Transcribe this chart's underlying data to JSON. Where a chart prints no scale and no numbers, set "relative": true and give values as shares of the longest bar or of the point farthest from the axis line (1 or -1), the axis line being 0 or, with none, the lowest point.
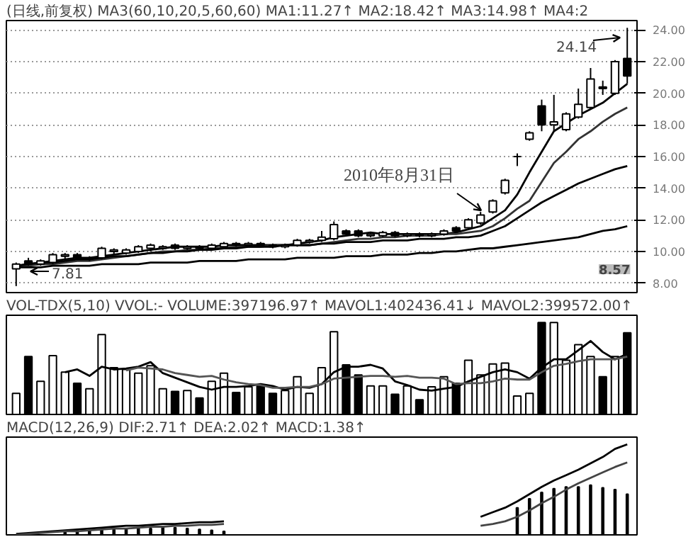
{
  "chart_data": [
    {
      "type": "candlestick",
      "title": "(日线,前复权) MA3(60,10,20,5,60,60) MA1:11.27↑ MA2:18.42↑ MA3:14.98↑ MA4:2",
      "categories": [
        null,
        null,
        null,
        null,
        null,
        null,
        null,
        null,
        null,
        null,
        null,
        null,
        null,
        null,
        null,
        null,
        null,
        null,
        null,
        null,
        null,
        null,
        null,
        null,
        null,
        null,
        null,
        null,
        null,
        null,
        null,
        null,
        null,
        null,
        null,
        null,
        null,
        null,
        null,
        null,
        null,
        null,
        null,
        null,
        null,
        null,
        null,
        null,
        null,
        null,
        null
      ],
      "ohlc": [
        [
          8.9,
          9.3,
          7.81,
          9.2
        ],
        [
          9.4,
          9.6,
          9.1,
          9.2
        ],
        [
          9.2,
          9.5,
          9.1,
          9.4
        ],
        [
          9.3,
          9.9,
          9.2,
          9.8
        ],
        [
          9.7,
          9.9,
          9.5,
          9.8
        ],
        [
          9.8,
          9.9,
          9.5,
          9.6
        ],
        [
          9.5,
          9.7,
          9.4,
          9.6
        ],
        [
          9.6,
          10.3,
          9.5,
          10.2
        ],
        [
          10.0,
          10.2,
          9.8,
          10.1
        ],
        [
          9.9,
          10.2,
          9.8,
          10.1
        ],
        [
          10.0,
          10.4,
          9.9,
          10.3
        ],
        [
          10.2,
          10.5,
          10.0,
          10.4
        ],
        [
          10.2,
          10.4,
          10.1,
          10.3
        ],
        [
          10.4,
          10.5,
          10.1,
          10.2
        ],
        [
          10.2,
          10.4,
          10.1,
          10.3
        ],
        [
          10.3,
          10.4,
          10.1,
          10.2
        ],
        [
          10.2,
          10.5,
          10.1,
          10.4
        ],
        [
          10.3,
          10.6,
          10.2,
          10.5
        ],
        [
          10.5,
          10.6,
          10.3,
          10.4
        ],
        [
          10.4,
          10.6,
          10.3,
          10.5
        ],
        [
          10.5,
          10.6,
          10.3,
          10.4
        ],
        [
          10.4,
          10.5,
          10.2,
          10.3
        ],
        [
          10.3,
          10.5,
          10.2,
          10.4
        ],
        [
          10.4,
          10.8,
          10.3,
          10.7
        ],
        [
          10.6,
          10.8,
          10.5,
          10.7
        ],
        [
          10.7,
          11.3,
          10.6,
          10.9
        ],
        [
          10.8,
          11.9,
          10.7,
          11.7
        ],
        [
          11.3,
          11.4,
          11.0,
          11.1
        ],
        [
          11.3,
          11.4,
          10.9,
          11.0
        ],
        [
          11.0,
          11.2,
          10.9,
          11.1
        ],
        [
          11.0,
          11.3,
          10.9,
          11.2
        ],
        [
          11.2,
          11.3,
          10.9,
          11.0
        ],
        [
          11.0,
          11.2,
          10.9,
          11.1
        ],
        [
          11.1,
          11.2,
          10.9,
          11.0
        ],
        [
          11.0,
          11.2,
          10.9,
          11.1
        ],
        [
          11.1,
          11.4,
          11.0,
          11.3
        ],
        [
          11.5,
          11.6,
          11.2,
          11.3
        ],
        [
          11.5,
          12.1,
          11.4,
          12.0
        ],
        [
          11.8,
          12.5,
          11.7,
          12.3
        ],
        [
          12.5,
          13.3,
          12.4,
          13.2
        ],
        [
          13.7,
          14.6,
          13.6,
          14.5
        ],
        [
          16.0,
          16.2,
          15.4,
          16.0
        ],
        [
          17.1,
          17.6,
          17.0,
          17.5
        ],
        [
          19.2,
          19.6,
          17.6,
          18.0
        ],
        [
          18.0,
          19.9,
          17.6,
          18.2
        ],
        [
          17.7,
          18.8,
          17.6,
          18.7
        ],
        [
          18.5,
          20.3,
          18.4,
          19.3
        ],
        [
          19.1,
          21.6,
          19.0,
          20.9
        ],
        [
          20.4,
          20.8,
          19.9,
          20.3
        ],
        [
          20.0,
          22.1,
          19.9,
          22.0
        ],
        [
          22.2,
          24.14,
          20.6,
          21.1
        ]
      ],
      "series": [
        {
          "type": "line",
          "color": "#000000",
          "values": [
            9.1,
            9.2,
            9.3,
            9.4,
            9.5,
            9.6,
            9.6,
            9.7,
            9.8,
            9.9,
            10.0,
            10.1,
            10.2,
            10.3,
            10.3,
            10.3,
            10.3,
            10.4,
            10.4,
            10.4,
            10.4,
            10.4,
            10.4,
            10.5,
            10.6,
            10.7,
            10.9,
            11.0,
            11.1,
            11.2,
            11.1,
            11.1,
            11.1,
            11.1,
            11.1,
            11.1,
            11.2,
            11.4,
            11.6,
            12.1,
            12.6,
            13.6,
            15.0,
            16.3,
            17.6,
            18.1,
            18.6,
            19.0,
            19.4,
            20.0,
            20.6
          ]
        },
        {
          "type": "line",
          "color": "#333333",
          "values": [
            9.0,
            9.1,
            9.2,
            9.2,
            9.3,
            9.4,
            9.4,
            9.5,
            9.6,
            9.7,
            9.8,
            9.9,
            10.0,
            10.0,
            10.1,
            10.1,
            10.2,
            10.2,
            10.3,
            10.3,
            10.3,
            10.4,
            10.4,
            10.4,
            10.4,
            10.5,
            10.6,
            10.7,
            10.8,
            10.8,
            10.9,
            10.9,
            11.0,
            11.0,
            11.0,
            11.1,
            11.1,
            11.2,
            11.3,
            11.6,
            12.1,
            12.7,
            13.2,
            14.4,
            15.6,
            16.3,
            17.1,
            17.6,
            18.2,
            18.7,
            19.1
          ]
        },
        {
          "type": "line",
          "color": "#000000",
          "values": [
            9.1,
            9.2,
            9.3,
            9.3,
            9.4,
            9.5,
            9.5,
            9.6,
            9.7,
            9.7,
            9.8,
            9.9,
            9.9,
            10.0,
            10.0,
            10.1,
            10.1,
            10.2,
            10.2,
            10.3,
            10.3,
            10.3,
            10.4,
            10.4,
            10.4,
            10.5,
            10.5,
            10.6,
            10.6,
            10.6,
            10.7,
            10.7,
            10.7,
            10.8,
            10.8,
            10.8,
            10.9,
            10.9,
            11.0,
            11.3,
            11.6,
            12.1,
            12.6,
            13.1,
            13.5,
            13.9,
            14.3,
            14.6,
            14.9,
            15.2,
            15.4
          ]
        },
        {
          "type": "line",
          "color": "#000000",
          "values": [
            9.0,
            9.0,
            9.0,
            9.1,
            9.1,
            9.1,
            9.1,
            9.2,
            9.2,
            9.2,
            9.2,
            9.3,
            9.3,
            9.3,
            9.3,
            9.4,
            9.4,
            9.4,
            9.4,
            9.5,
            9.5,
            9.5,
            9.5,
            9.6,
            9.6,
            9.6,
            9.6,
            9.7,
            9.7,
            9.7,
            9.8,
            9.8,
            9.8,
            9.9,
            9.9,
            10.0,
            10.0,
            10.1,
            10.2,
            10.2,
            10.3,
            10.4,
            10.5,
            10.6,
            10.7,
            10.8,
            10.9,
            11.1,
            11.3,
            11.4,
            11.6
          ]
        }
      ],
      "ylim": [
        7.4,
        24.6
      ],
      "yticks": [
        {
          "value": 8,
          "label": "8.00"
        },
        {
          "value": 10,
          "label": "10.00"
        },
        {
          "value": 12,
          "label": "12.00"
        },
        {
          "value": 14,
          "label": "14.00"
        },
        {
          "value": 16,
          "label": "16.00"
        },
        {
          "value": 18,
          "label": "18.00"
        },
        {
          "value": 20,
          "label": "20.00"
        },
        {
          "value": 22,
          "label": "22.00"
        },
        {
          "value": 24,
          "label": "24.00"
        }
      ],
      "grid": "y",
      "tick_labels": "y",
      "annotations": [
        "2010年8月31日",
        "24.14",
        "7.81",
        "8.57"
      ]
    },
    {
      "type": "bar",
      "title": "VOL-TDX(5,10) VVOL:- VOLUME:397196.97↑ MAVOL1:402436.41↓ MAVOL2:399572.00↑",
      "relative": true,
      "tick_labels": false,
      "categories": [
        null,
        null,
        null,
        null,
        null,
        null,
        null,
        null,
        null,
        null,
        null,
        null,
        null,
        null,
        null,
        null,
        null,
        null,
        null,
        null,
        null,
        null,
        null,
        null,
        null,
        null,
        null,
        null,
        null,
        null,
        null,
        null,
        null,
        null,
        null,
        null,
        null,
        null,
        null,
        null,
        null,
        null,
        null,
        null,
        null,
        null,
        null,
        null,
        null,
        null,
        null
      ],
      "series": [
        {
          "type": "bar",
          "values": [
            0.23,
            0.63,
            0.36,
            0.64,
            0.46,
            0.34,
            0.28,
            0.87,
            0.51,
            0.49,
            0.45,
            0.53,
            0.28,
            0.25,
            0.26,
            0.18,
            0.36,
            0.45,
            0.24,
            0.3,
            0.31,
            0.23,
            0.26,
            0.41,
            0.23,
            0.51,
            0.9,
            0.54,
            0.43,
            0.31,
            0.31,
            0.22,
            0.31,
            0.16,
            0.3,
            0.41,
            0.34,
            0.59,
            0.43,
            0.55,
            0.56,
            0.2,
            0.23,
            1,
            1,
            0.59,
            0.76,
            0.63,
            0.41,
            0.63,
            0.89
          ],
          "colors": [
            "#ffffff",
            "#000000",
            "#ffffff",
            "#ffffff",
            "#ffffff",
            "#000000",
            "#ffffff",
            "#ffffff",
            "#ffffff",
            "#ffffff",
            "#ffffff",
            "#ffffff",
            "#ffffff",
            "#000000",
            "#ffffff",
            "#000000",
            "#ffffff",
            "#ffffff",
            "#000000",
            "#ffffff",
            "#000000",
            "#000000",
            "#ffffff",
            "#ffffff",
            "#ffffff",
            "#ffffff",
            "#ffffff",
            "#000000",
            "#000000",
            "#ffffff",
            "#ffffff",
            "#000000",
            "#ffffff",
            "#000000",
            "#ffffff",
            "#ffffff",
            "#000000",
            "#ffffff",
            "#ffffff",
            "#ffffff",
            "#ffffff",
            "#ffffff",
            "#ffffff",
            "#000000",
            "#ffffff",
            "#ffffff",
            "#ffffff",
            "#ffffff",
            "#000000",
            "#ffffff",
            "#000000"
          ]
        },
        {
          "type": "line",
          "color": "#000000",
          "values": [
            null,
            null,
            null,
            null,
            0.46,
            0.49,
            0.42,
            0.52,
            0.49,
            0.5,
            0.52,
            0.57,
            0.45,
            0.4,
            0.35,
            0.3,
            0.27,
            0.3,
            0.3,
            0.31,
            0.33,
            0.31,
            0.27,
            0.3,
            0.29,
            0.33,
            0.46,
            0.52,
            0.52,
            0.54,
            0.5,
            0.36,
            0.32,
            0.27,
            0.26,
            0.28,
            0.3,
            0.36,
            0.41,
            0.46,
            0.49,
            0.46,
            0.39,
            0.51,
            0.6,
            0.6,
            0.7,
            0.8,
            0.68,
            0.6,
            0.66
          ]
        },
        {
          "type": "line",
          "color": "#555555",
          "values": [
            null,
            null,
            null,
            null,
            null,
            null,
            null,
            null,
            null,
            0.48,
            0.51,
            0.5,
            0.49,
            0.45,
            0.43,
            0.41,
            0.42,
            0.38,
            0.35,
            0.33,
            0.32,
            0.29,
            0.29,
            0.3,
            0.3,
            0.33,
            0.39,
            0.4,
            0.41,
            0.42,
            0.42,
            0.41,
            0.42,
            0.4,
            0.4,
            0.39,
            0.33,
            0.34,
            0.34,
            0.36,
            0.39,
            0.38,
            0.38,
            0.46,
            0.53,
            0.55,
            0.58,
            0.6,
            0.6,
            0.6,
            0.63
          ]
        }
      ]
    },
    {
      "type": "bar",
      "title": "MACD(12,26,9) DIF:2.71↑ DEA:2.02↑ MACD:1.38↑",
      "relative": true,
      "tick_labels": false,
      "categories": [
        null,
        null,
        null,
        null,
        null,
        null,
        null,
        null,
        null,
        null,
        null,
        null,
        null,
        null,
        null,
        null,
        null,
        null,
        null,
        null,
        null,
        null,
        null,
        null,
        null,
        null,
        null,
        null,
        null,
        null,
        null,
        null,
        null,
        null,
        null,
        null,
        null,
        null,
        null,
        null,
        null,
        null,
        null,
        null,
        null,
        null,
        null,
        null,
        null,
        null,
        null
      ],
      "series": [
        {
          "type": "bar",
          "color": "#000000",
          "values": [
            null,
            null,
            null,
            null,
            0.04,
            0.05,
            0.05,
            0.06,
            0.06,
            0.07,
            0.07,
            0.07,
            0.08,
            0.08,
            0.07,
            0.06,
            0.05,
            0.04,
            null,
            null,
            null,
            null,
            null,
            null,
            null,
            null,
            null,
            null,
            null,
            null,
            null,
            null,
            null,
            null,
            null,
            null,
            null,
            null,
            null,
            null,
            null,
            0.3,
            0.4,
            0.47,
            0.51,
            0.53,
            0.53,
            0.55,
            0.52,
            0.5,
            0.45
          ]
        },
        {
          "type": "line",
          "color": "#000000",
          "values": [
            0.01,
            0.02,
            0.03,
            0.04,
            0.05,
            0.06,
            0.07,
            0.08,
            0.09,
            0.1,
            0.1,
            0.11,
            0.12,
            0.12,
            0.13,
            0.14,
            0.14,
            0.15,
            null,
            null,
            null,
            null,
            null,
            null,
            null,
            null,
            null,
            null,
            null,
            null,
            null,
            null,
            null,
            null,
            null,
            null,
            null,
            null,
            0.2,
            0.25,
            0.3,
            0.37,
            0.45,
            0.53,
            0.6,
            0.66,
            0.72,
            0.79,
            0.86,
            0.95,
            1
          ]
        },
        {
          "type": "line",
          "color": "#444444",
          "values": [
            0.0,
            0.01,
            0.02,
            0.03,
            0.04,
            0.04,
            0.05,
            0.06,
            0.07,
            0.07,
            0.08,
            0.09,
            0.09,
            0.1,
            0.1,
            0.11,
            0.11,
            0.12,
            null,
            null,
            null,
            null,
            null,
            null,
            null,
            null,
            null,
            null,
            null,
            null,
            null,
            null,
            null,
            null,
            null,
            null,
            null,
            null,
            0.1,
            0.12,
            0.15,
            0.2,
            0.27,
            0.35,
            0.42,
            0.5,
            0.57,
            0.63,
            0.69,
            0.75,
            0.8
          ]
        }
      ]
    }
  ]
}
